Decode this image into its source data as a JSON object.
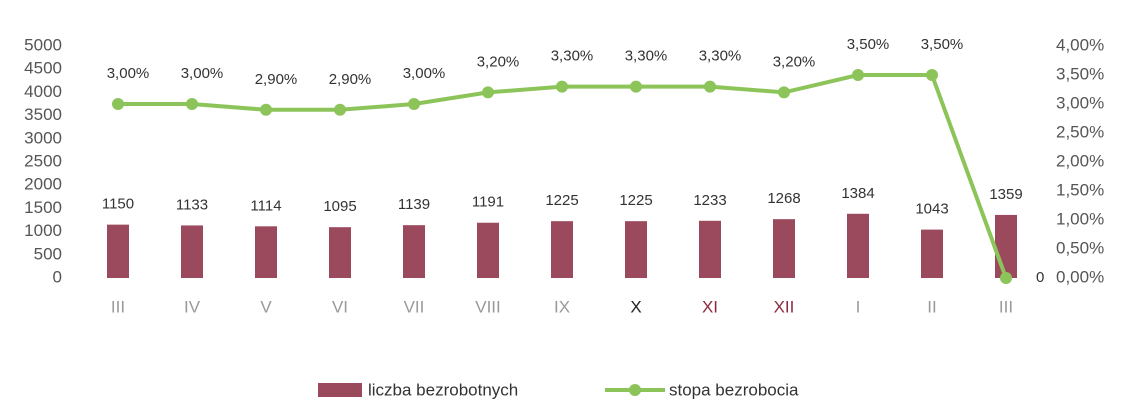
{
  "chart_data": {
    "type": "combo",
    "categories": [
      "III",
      "IV",
      "V",
      "VI",
      "VII",
      "VIII",
      "IX",
      "X",
      "XI",
      "XII",
      "I",
      "II",
      "III"
    ],
    "category_colors": [
      "#999999",
      "#999999",
      "#999999",
      "#999999",
      "#999999",
      "#999999",
      "#999999",
      "#222222",
      "#8b2a3e",
      "#8b2a3e",
      "#999999",
      "#999999",
      "#999999"
    ],
    "series": [
      {
        "name": "liczba bezrobotnych",
        "type": "bar",
        "axis": "y",
        "color": "#9b4a5e",
        "values": [
          1150,
          1133,
          1114,
          1095,
          1139,
          1191,
          1225,
          1225,
          1233,
          1268,
          1384,
          1043,
          1359
        ]
      },
      {
        "name": "stopa bezrobocia",
        "type": "line",
        "axis": "y2",
        "color": "#8dc45a",
        "values": [
          3.0,
          3.0,
          2.9,
          2.9,
          3.0,
          3.2,
          3.3,
          3.3,
          3.3,
          3.2,
          3.5,
          3.5,
          0
        ],
        "value_labels": [
          "3,00%",
          "3,00%",
          "2,90%",
          "2,90%",
          "3,00%",
          "3,20%",
          "3,30%",
          "3,30%",
          "3,30%",
          "3,20%",
          "3,50%",
          "3,50%",
          "0"
        ]
      }
    ],
    "ylim": [
      0,
      5000
    ],
    "yticks": [
      0,
      500,
      1000,
      1500,
      2000,
      2500,
      3000,
      3500,
      4000,
      4500,
      5000
    ],
    "y2lim": [
      0,
      4
    ],
    "y2ticks": [
      {
        "value": 0,
        "label": "0,00%"
      },
      {
        "value": 0.5,
        "label": "0,50%"
      },
      {
        "value": 1,
        "label": "1,00%"
      },
      {
        "value": 1.5,
        "label": "1,50%"
      },
      {
        "value": 2,
        "label": "2,00%"
      },
      {
        "value": 2.5,
        "label": "2,50%"
      },
      {
        "value": 3,
        "label": "3,00%"
      },
      {
        "value": 3.5,
        "label": "3,50%"
      },
      {
        "value": 4,
        "label": "4,00%"
      }
    ],
    "legend": "bottom"
  }
}
